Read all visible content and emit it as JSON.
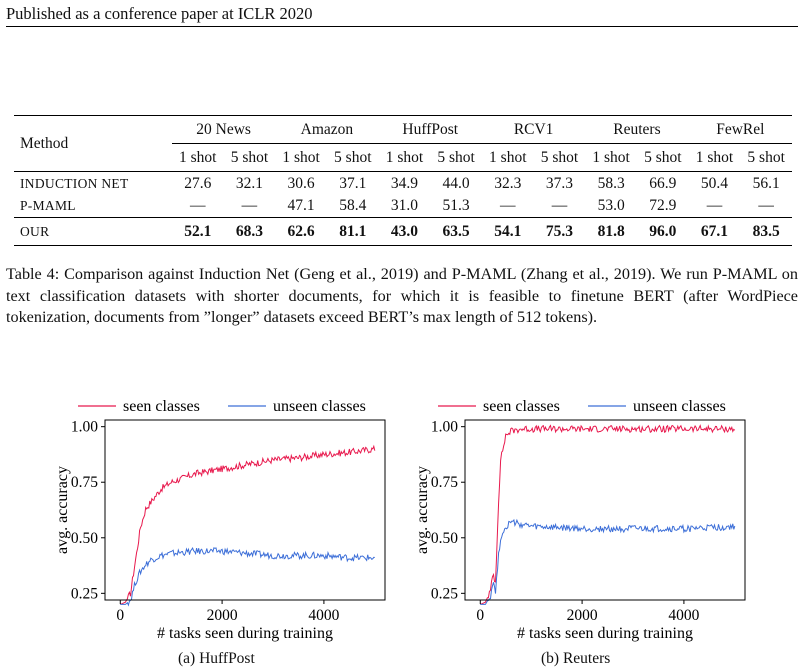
{
  "header": {
    "text": "Published as a conference paper at ICLR 2020"
  },
  "table": {
    "method_header": "Method",
    "datasets": [
      "20 News",
      "Amazon",
      "HuffPost",
      "RCV1",
      "Reuters",
      "FewRel"
    ],
    "shots": [
      "1 shot",
      "5 shot"
    ],
    "rows": [
      {
        "method": "INDUCTION NET",
        "values": [
          "27.6",
          "32.1",
          "30.6",
          "37.1",
          "34.9",
          "44.0",
          "32.3",
          "37.3",
          "58.3",
          "66.9",
          "50.4",
          "56.1"
        ]
      },
      {
        "method": "P-MAML",
        "values": [
          "—",
          "—",
          "47.1",
          "58.4",
          "31.0",
          "51.3",
          "—",
          "—",
          "53.0",
          "72.9",
          "—",
          "—"
        ]
      },
      {
        "method": "OUR",
        "values": [
          "52.1",
          "68.3",
          "62.6",
          "81.1",
          "43.0",
          "63.5",
          "54.1",
          "75.3",
          "81.8",
          "96.0",
          "67.1",
          "83.5"
        ],
        "bold": true
      }
    ]
  },
  "caption": "Table 4: Comparison against Induction Net (Geng et al., 2019) and P-MAML (Zhang et al., 2019). We run P-MAML on text classification datasets with shorter documents, for which it is feasible to finetune BERT (after WordPiece tokenization, documents from ”longer” datasets exceed BERT’s max length of 512 tokens).",
  "colors": {
    "seen": "#e8194d",
    "unseen": "#3d6fd8"
  },
  "chart_data": [
    {
      "type": "line",
      "subcaption": "(a) HuffPost",
      "xlabel": "# tasks seen during training",
      "ylabel": "avg. accuracy",
      "xlim": [
        -300,
        5200
      ],
      "ylim": [
        0.22,
        1.03
      ],
      "xticks": [
        0,
        2000,
        4000
      ],
      "yticks": [
        0.25,
        0.5,
        0.75,
        1.0
      ],
      "ytick_labels": [
        "0.25",
        "0.50",
        "0.75",
        "1.00"
      ],
      "xtick_labels": [
        "0",
        "2000",
        "4000"
      ],
      "legend": [
        "seen classes",
        "unseen classes"
      ],
      "series": [
        {
          "name": "seen classes",
          "x": [
            0,
            100,
            200,
            300,
            400,
            500,
            600,
            800,
            1000,
            1500,
            2000,
            2500,
            3000,
            3500,
            4000,
            4500,
            5000
          ],
          "y": [
            0.2,
            0.21,
            0.25,
            0.4,
            0.55,
            0.63,
            0.66,
            0.72,
            0.75,
            0.79,
            0.81,
            0.83,
            0.85,
            0.86,
            0.875,
            0.885,
            0.9
          ]
        },
        {
          "name": "unseen classes",
          "x": [
            0,
            100,
            200,
            300,
            400,
            500,
            600,
            800,
            1000,
            1500,
            2000,
            2500,
            3000,
            3500,
            4000,
            4500,
            5000
          ],
          "y": [
            0.2,
            0.2,
            0.22,
            0.3,
            0.35,
            0.38,
            0.4,
            0.42,
            0.43,
            0.44,
            0.44,
            0.43,
            0.42,
            0.42,
            0.42,
            0.41,
            0.41
          ]
        }
      ]
    },
    {
      "type": "line",
      "subcaption": "(b) Reuters",
      "xlabel": "# tasks seen during training",
      "ylabel": "avg. accuracy",
      "xlim": [
        -300,
        5200
      ],
      "ylim": [
        0.22,
        1.03
      ],
      "xticks": [
        0,
        2000,
        4000
      ],
      "yticks": [
        0.25,
        0.5,
        0.75,
        1.0
      ],
      "ytick_labels": [
        "0.25",
        "0.50",
        "0.75",
        "1.00"
      ],
      "xtick_labels": [
        "0",
        "2000",
        "4000"
      ],
      "legend": [
        "seen classes",
        "unseen classes"
      ],
      "series": [
        {
          "name": "seen classes",
          "x": [
            0,
            100,
            200,
            250,
            300,
            350,
            400,
            500,
            600,
            800,
            1000,
            2000,
            3000,
            4000,
            5000
          ],
          "y": [
            0.2,
            0.21,
            0.26,
            0.34,
            0.3,
            0.62,
            0.85,
            0.96,
            0.98,
            0.99,
            0.99,
            0.99,
            0.99,
            0.99,
            0.99
          ]
        },
        {
          "name": "unseen classes",
          "x": [
            0,
            100,
            200,
            250,
            300,
            350,
            400,
            500,
            600,
            800,
            1000,
            2000,
            3000,
            4000,
            5000
          ],
          "y": [
            0.2,
            0.2,
            0.24,
            0.3,
            0.26,
            0.4,
            0.5,
            0.55,
            0.57,
            0.56,
            0.55,
            0.54,
            0.54,
            0.54,
            0.55
          ]
        }
      ]
    }
  ]
}
